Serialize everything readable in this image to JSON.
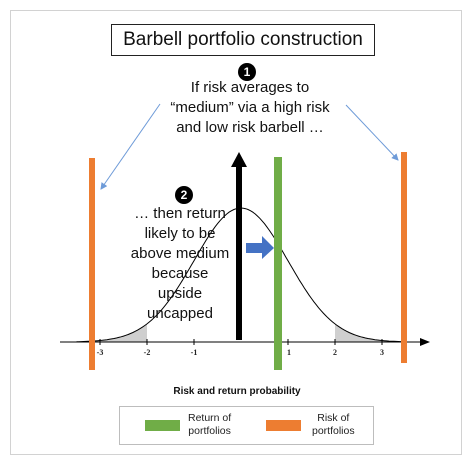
{
  "title": "Barbell portfolio construction",
  "note1": {
    "badge": "1",
    "lines": [
      "If risk averages to",
      "“medium” via a high risk",
      "and low risk barbell …"
    ]
  },
  "note2": {
    "badge": "2",
    "lines": [
      "… then return",
      "likely to be",
      "above medium",
      "because",
      "upside",
      "uncapped"
    ]
  },
  "axis": {
    "title": "Risk and return probability",
    "ticks": [
      "-3",
      "-2",
      "-1",
      "1",
      "2",
      "3"
    ]
  },
  "legend": {
    "items": [
      {
        "lines": [
          "Return of",
          "portfolios"
        ],
        "color": "#70ad47"
      },
      {
        "lines": [
          "Risk of",
          "portfolios"
        ],
        "color": "#ed7d31"
      }
    ]
  },
  "colors": {
    "return_bar": "#70ad47",
    "risk_bar": "#ed7d31",
    "arrow_blue": "#4472c4",
    "pointer_blue": "#6e9bd8",
    "tail_shade": "#cfcfcf"
  }
}
